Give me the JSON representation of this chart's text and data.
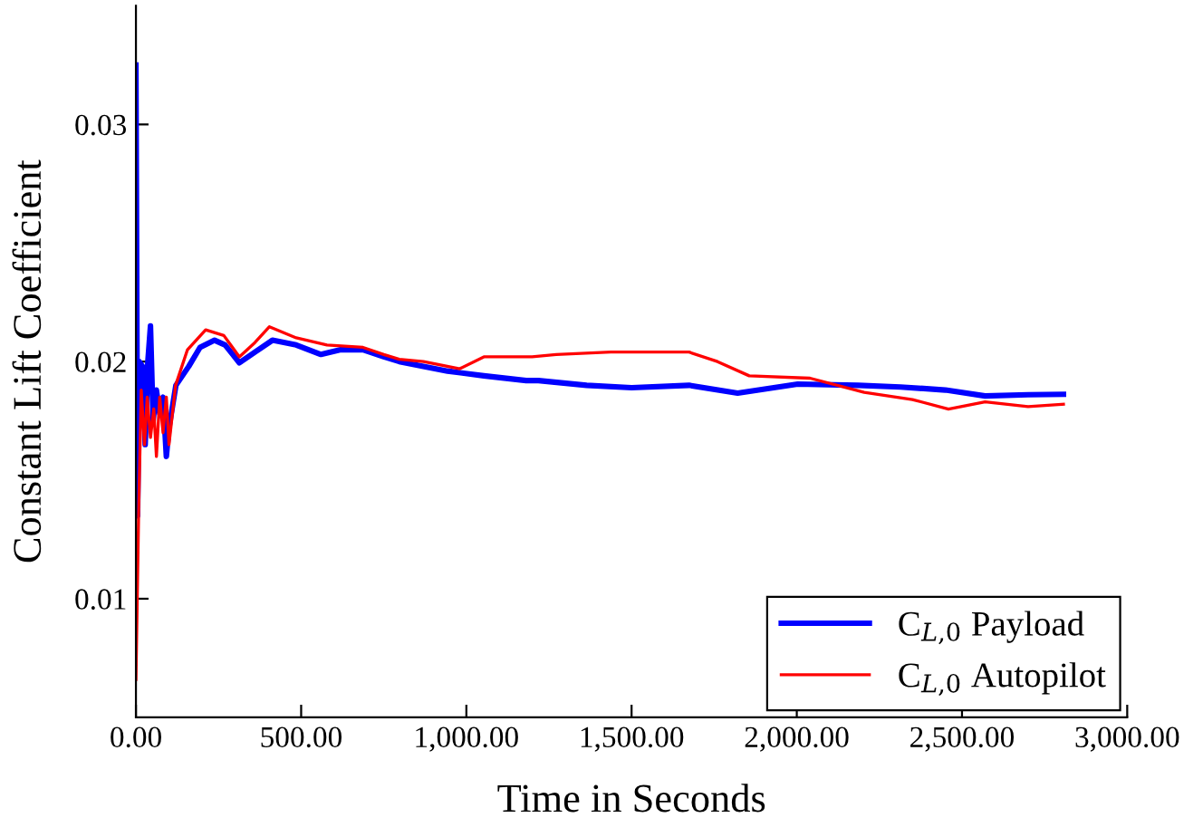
{
  "chart_data": {
    "type": "line",
    "xlabel": "Time in Seconds",
    "ylabel": "Constant Lift Coefficient",
    "xlim": [
      0,
      3000
    ],
    "ylim": [
      0.005,
      0.035
    ],
    "xticks": [
      {
        "value": 0,
        "label": "0.00"
      },
      {
        "value": 500,
        "label": "500.00"
      },
      {
        "value": 1000,
        "label": "1,000.00"
      },
      {
        "value": 1500,
        "label": "1,500.00"
      },
      {
        "value": 2000,
        "label": "2,000.00"
      },
      {
        "value": 2500,
        "label": "2,500.00"
      },
      {
        "value": 3000,
        "label": "3,000.00"
      }
    ],
    "yticks": [
      0.01,
      0.02,
      0.03
    ],
    "grid": false,
    "legend": "bottom right",
    "marker": "none",
    "line_style": "solid",
    "series": [
      {
        "name": "C$_{L,0}$ Payload",
        "color": "#0000ff",
        "x": [
          0,
          5,
          10,
          20,
          28,
          36,
          44,
          52,
          62,
          72,
          82,
          92,
          100,
          121,
          160,
          194,
          238,
          270,
          313,
          360,
          413,
          485,
          560,
          620,
          687,
          750,
          797,
          870,
          943,
          1053,
          1181,
          1218,
          1364,
          1500,
          1674,
          1821,
          2003,
          2186,
          2314,
          2450,
          2570,
          2700,
          2807
        ],
        "values": [
          0.0325,
          0.0135,
          0.02,
          0.0198,
          0.0165,
          0.02,
          0.0215,
          0.0175,
          0.0188,
          0.0178,
          0.0185,
          0.016,
          0.0172,
          0.019,
          0.0198,
          0.0206,
          0.0209,
          0.0207,
          0.01995,
          0.0204,
          0.0209,
          0.0207,
          0.0203,
          0.0205,
          0.0205,
          0.0202,
          0.02,
          0.0198,
          0.0196,
          0.0194,
          0.0192,
          0.0192,
          0.019,
          0.0189,
          0.019,
          0.01867,
          0.01905,
          0.019,
          0.01893,
          0.0188,
          0.01855,
          0.0186,
          0.01862
        ]
      },
      {
        "name": "C$_{L,0}$ Autopilot",
        "color": "#ff0000",
        "x": [
          0,
          8,
          16,
          26,
          34,
          44,
          54,
          62,
          72,
          82,
          92,
          100,
          120,
          156,
          211,
          266,
          313,
          360,
          404,
          485,
          578,
          687,
          750,
          797,
          870,
          980,
          1053,
          1199,
          1272,
          1437,
          1674,
          1760,
          1856,
          2040,
          2204,
          2350,
          2459,
          2570,
          2700,
          2807
        ],
        "values": [
          0.0066,
          0.0135,
          0.0188,
          0.0165,
          0.0185,
          0.0168,
          0.018,
          0.016,
          0.0185,
          0.017,
          0.0185,
          0.0165,
          0.019,
          0.0205,
          0.02134,
          0.0211,
          0.0202,
          0.0208,
          0.02147,
          0.021,
          0.0207,
          0.0206,
          0.0203,
          0.0201,
          0.02,
          0.0197,
          0.0202,
          0.0202,
          0.0203,
          0.0204,
          0.0204,
          0.02,
          0.0194,
          0.0193,
          0.0187,
          0.0184,
          0.018,
          0.0183,
          0.0181,
          0.0182
        ]
      }
    ]
  }
}
